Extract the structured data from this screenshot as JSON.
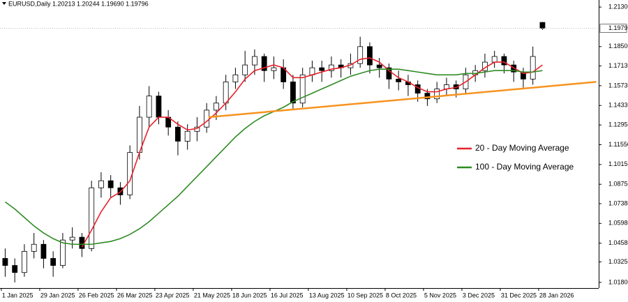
{
  "chart_data": {
    "type": "candlestick",
    "title": "EURUSD,Daily 1.20213 1.20244 1.19690 1.19796",
    "x": [
      2,
      7,
      12,
      17,
      22,
      27,
      32,
      37,
      42,
      47,
      52,
      57,
      62,
      67,
      72,
      77,
      82,
      87,
      92,
      97,
      102,
      107,
      112,
      117,
      122,
      127,
      132,
      137,
      142,
      147,
      152,
      157,
      162,
      167,
      172,
      177,
      182,
      187,
      192,
      197,
      202,
      207,
      212,
      217,
      222,
      227,
      232,
      237,
      242,
      247,
      252,
      257,
      262,
      267,
      272,
      277,
      282
    ],
    "ohlc": [
      [
        1.035,
        1.042,
        1.022,
        1.03
      ],
      [
        1.03,
        1.035,
        1.018,
        1.025
      ],
      [
        1.025,
        1.045,
        1.022,
        1.04
      ],
      [
        1.04,
        1.053,
        1.035,
        1.045
      ],
      [
        1.045,
        1.048,
        1.028,
        1.035
      ],
      [
        1.035,
        1.04,
        1.022,
        1.03
      ],
      [
        1.03,
        1.053,
        1.028,
        1.048
      ],
      [
        1.048,
        1.057,
        1.042,
        1.05
      ],
      [
        1.05,
        1.053,
        1.036,
        1.042
      ],
      [
        1.042,
        1.09,
        1.04,
        1.085
      ],
      [
        1.085,
        1.096,
        1.078,
        1.09
      ],
      [
        1.09,
        1.094,
        1.078,
        1.085
      ],
      [
        1.085,
        1.089,
        1.073,
        1.08
      ],
      [
        1.08,
        1.115,
        1.077,
        1.11
      ],
      [
        1.11,
        1.143,
        1.105,
        1.135
      ],
      [
        1.135,
        1.157,
        1.128,
        1.15
      ],
      [
        1.15,
        1.153,
        1.13,
        1.135
      ],
      [
        1.135,
        1.14,
        1.122,
        1.128
      ],
      [
        1.128,
        1.132,
        1.108,
        1.118
      ],
      [
        1.118,
        1.13,
        1.112,
        1.125
      ],
      [
        1.125,
        1.135,
        1.118,
        1.128
      ],
      [
        1.128,
        1.145,
        1.124,
        1.14
      ],
      [
        1.14,
        1.15,
        1.133,
        1.145
      ],
      [
        1.145,
        1.165,
        1.14,
        1.16
      ],
      [
        1.16,
        1.17,
        1.155,
        1.165
      ],
      [
        1.165,
        1.182,
        1.16,
        1.172
      ],
      [
        1.172,
        1.183,
        1.165,
        1.178
      ],
      [
        1.178,
        1.18,
        1.16,
        1.168
      ],
      [
        1.168,
        1.178,
        1.162,
        1.17
      ],
      [
        1.17,
        1.176,
        1.155,
        1.16
      ],
      [
        1.16,
        1.165,
        1.14,
        1.145
      ],
      [
        1.145,
        1.17,
        1.142,
        1.165
      ],
      [
        1.165,
        1.175,
        1.16,
        1.17
      ],
      [
        1.17,
        1.175,
        1.16,
        1.168
      ],
      [
        1.168,
        1.178,
        1.163,
        1.172
      ],
      [
        1.172,
        1.176,
        1.163,
        1.17
      ],
      [
        1.17,
        1.18,
        1.165,
        1.173
      ],
      [
        1.173,
        1.192,
        1.17,
        1.185
      ],
      [
        1.185,
        1.188,
        1.166,
        1.172
      ],
      [
        1.172,
        1.177,
        1.163,
        1.17
      ],
      [
        1.17,
        1.173,
        1.155,
        1.162
      ],
      [
        1.162,
        1.168,
        1.154,
        1.16
      ],
      [
        1.16,
        1.165,
        1.15,
        1.158
      ],
      [
        1.158,
        1.161,
        1.146,
        1.152
      ],
      [
        1.152,
        1.155,
        1.143,
        1.148
      ],
      [
        1.148,
        1.16,
        1.145,
        1.155
      ],
      [
        1.155,
        1.163,
        1.15,
        1.158
      ],
      [
        1.158,
        1.161,
        1.149,
        1.155
      ],
      [
        1.155,
        1.17,
        1.152,
        1.165
      ],
      [
        1.165,
        1.172,
        1.16,
        1.168
      ],
      [
        1.168,
        1.18,
        1.163,
        1.174
      ],
      [
        1.174,
        1.182,
        1.17,
        1.178
      ],
      [
        1.178,
        1.18,
        1.166,
        1.172
      ],
      [
        1.172,
        1.175,
        1.16,
        1.167
      ],
      [
        1.167,
        1.17,
        1.156,
        1.162
      ],
      [
        1.162,
        1.185,
        1.158,
        1.178
      ],
      [
        1.20213,
        1.20244,
        1.1969,
        1.19796
      ]
    ],
    "series": [
      {
        "name": "20 - Day Moving Average",
        "color": "#e8202a",
        "values": [
          null,
          null,
          null,
          null,
          null,
          null,
          null,
          null,
          1.043,
          1.055,
          1.068,
          1.078,
          1.082,
          1.09,
          1.11,
          1.128,
          1.135,
          1.135,
          1.13,
          1.126,
          1.127,
          1.132,
          1.138,
          1.145,
          1.153,
          1.162,
          1.168,
          1.17,
          1.172,
          1.17,
          1.163,
          1.163,
          1.165,
          1.167,
          1.169,
          1.17,
          1.172,
          1.176,
          1.177,
          1.174,
          1.168,
          1.163,
          1.16,
          1.156,
          1.153,
          1.153,
          1.155,
          1.156,
          1.16,
          1.165,
          1.17,
          1.174,
          1.174,
          1.17,
          1.166,
          1.167,
          1.172
        ]
      },
      {
        "name": "100 - Day Moving Average",
        "color": "#2e8b22",
        "values": [
          1.075,
          1.07,
          1.064,
          1.058,
          1.053,
          1.049,
          1.046,
          1.045,
          1.045,
          1.045,
          1.046,
          1.047,
          1.049,
          1.052,
          1.056,
          1.061,
          1.067,
          1.073,
          1.079,
          1.086,
          1.093,
          1.1,
          1.107,
          1.114,
          1.121,
          1.127,
          1.132,
          1.136,
          1.139,
          1.142,
          1.146,
          1.149,
          1.152,
          1.155,
          1.158,
          1.161,
          1.164,
          1.166,
          1.168,
          1.169,
          1.169,
          1.169,
          1.168,
          1.167,
          1.166,
          1.165,
          1.165,
          1.165,
          1.166,
          1.166,
          1.167,
          1.168,
          1.168,
          1.168,
          1.167,
          1.167,
          1.168
        ]
      }
    ],
    "trendline": {
      "color": "#f7931e",
      "x": [
        108,
        310
      ],
      "y": [
        1.135,
        1.16
      ]
    },
    "current_price": 1.19796,
    "xlim": [
      -0.7,
      311.3
    ],
    "ylim": [
      1.014,
      1.218
    ],
    "xticks": [
      {
        "value": 0,
        "label": "1 Jan 2025"
      },
      {
        "value": 20,
        "label": "29 Jan 2025"
      },
      {
        "value": 40,
        "label": "26 Feb 2025"
      },
      {
        "value": 60,
        "label": "26 Mar 2025"
      },
      {
        "value": 80,
        "label": "23 Apr 2025"
      },
      {
        "value": 100,
        "label": "21 May 2025"
      },
      {
        "value": 120,
        "label": "18 Jun 2025"
      },
      {
        "value": 140,
        "label": "16 Jul 2025"
      },
      {
        "value": 160,
        "label": "13 Aug 2025"
      },
      {
        "value": 180,
        "label": "10 Sep 2025"
      },
      {
        "value": 200,
        "label": "8 Oct 2025"
      },
      {
        "value": 220,
        "label": "5 Nov 2025"
      },
      {
        "value": 240,
        "label": "3 Dec 2025"
      },
      {
        "value": 260,
        "label": "31 Dec 2025"
      },
      {
        "value": 280,
        "label": "28 Jan 2026"
      }
    ],
    "yticks": [
      {
        "value": 1.213,
        "label": "1.21300"
      },
      {
        "value": 1.185,
        "label": "1.18500"
      },
      {
        "value": 1.1713,
        "label": "1.17130"
      },
      {
        "value": 1.1573,
        "label": "1.15730"
      },
      {
        "value": 1.1433,
        "label": "1.14330"
      },
      {
        "value": 1.1295,
        "label": "1.12950"
      },
      {
        "value": 1.1155,
        "label": "1.11550"
      },
      {
        "value": 1.1015,
        "label": "1.10150"
      },
      {
        "value": 1.0875,
        "label": "1.08750"
      },
      {
        "value": 1.0738,
        "label": "1.07380"
      },
      {
        "value": 1.0598,
        "label": "1.05980"
      },
      {
        "value": 1.0458,
        "label": "1.04580"
      },
      {
        "value": 1.0325,
        "label": "1.03250"
      },
      {
        "value": 1.018,
        "label": "1.01800"
      }
    ],
    "grid": false,
    "bull_color": "#ffffff",
    "bear_color": "#000000"
  }
}
